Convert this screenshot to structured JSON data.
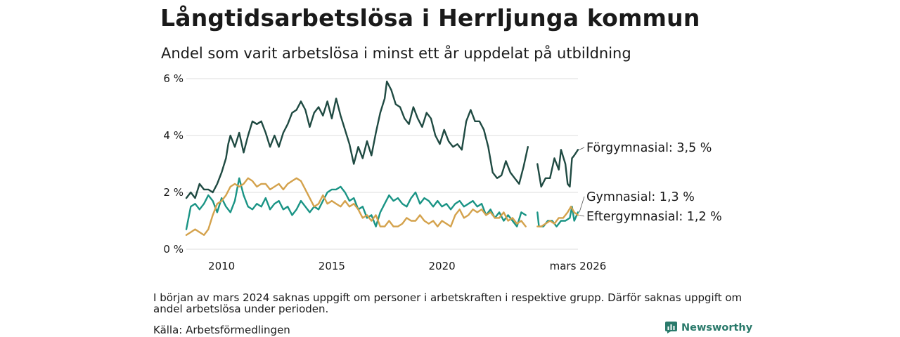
{
  "title": "Långtidsarbetslösa i Herrljunga kommun",
  "subtitle": "Andel som varit arbetslösa i minst ett år uppdelat på utbildning",
  "note": "I början av mars 2024 saknas uppgift om personer i arbetskraften i respektive grupp. Därför saknas uppgift om andel arbetslösa under perioden.",
  "source": "Källa: Arbetsförmedlingen",
  "brand": "Newsworthy",
  "colors": {
    "forgymnasial": "#1f4a42",
    "gymnasial": "#1a9485",
    "eftergymnasial": "#d4a24c",
    "grid": "#dcdcdc",
    "brand": "#2a7a6b"
  },
  "chart_data": {
    "type": "line",
    "title": "Långtidsarbetslösa i Herrljunga kommun",
    "xlabel": "",
    "ylabel": "",
    "xlim": [
      2008.4,
      2026.17
    ],
    "ylim": [
      0,
      6
    ],
    "grid": true,
    "y_ticks": [
      {
        "value": 0,
        "label": "0 %"
      },
      {
        "value": 2,
        "label": "2 %"
      },
      {
        "value": 4,
        "label": "4 %"
      },
      {
        "value": 6,
        "label": "6 %"
      }
    ],
    "x_ticks": [
      {
        "value": 2010,
        "label": "2010"
      },
      {
        "value": 2015,
        "label": "2015"
      },
      {
        "value": 2020,
        "label": "2020"
      },
      {
        "value": 2026.17,
        "label": "mars 2026"
      }
    ],
    "gap": [
      2024.17,
      2024.33
    ],
    "series": [
      {
        "name": "Förgymnasial",
        "end_label": "Förgymnasial: 3,5 %",
        "color_key": "forgymnasial",
        "points": [
          [
            2008.4,
            1.8
          ],
          [
            2008.6,
            2.0
          ],
          [
            2008.8,
            1.8
          ],
          [
            2009.0,
            2.3
          ],
          [
            2009.2,
            2.1
          ],
          [
            2009.4,
            2.1
          ],
          [
            2009.6,
            2.0
          ],
          [
            2009.8,
            2.3
          ],
          [
            2010.0,
            2.7
          ],
          [
            2010.2,
            3.2
          ],
          [
            2010.3,
            3.7
          ],
          [
            2010.4,
            4.0
          ],
          [
            2010.6,
            3.6
          ],
          [
            2010.8,
            4.1
          ],
          [
            2011.0,
            3.4
          ],
          [
            2011.2,
            4.0
          ],
          [
            2011.4,
            4.5
          ],
          [
            2011.6,
            4.4
          ],
          [
            2011.8,
            4.5
          ],
          [
            2012.0,
            4.1
          ],
          [
            2012.2,
            3.6
          ],
          [
            2012.4,
            4.0
          ],
          [
            2012.6,
            3.6
          ],
          [
            2012.8,
            4.1
          ],
          [
            2013.0,
            4.4
          ],
          [
            2013.2,
            4.8
          ],
          [
            2013.4,
            4.9
          ],
          [
            2013.6,
            5.2
          ],
          [
            2013.8,
            4.9
          ],
          [
            2014.0,
            4.3
          ],
          [
            2014.2,
            4.8
          ],
          [
            2014.4,
            5.0
          ],
          [
            2014.6,
            4.7
          ],
          [
            2014.8,
            5.2
          ],
          [
            2015.0,
            4.6
          ],
          [
            2015.2,
            5.3
          ],
          [
            2015.4,
            4.7
          ],
          [
            2015.6,
            4.2
          ],
          [
            2015.8,
            3.7
          ],
          [
            2016.0,
            3.0
          ],
          [
            2016.2,
            3.6
          ],
          [
            2016.4,
            3.2
          ],
          [
            2016.6,
            3.8
          ],
          [
            2016.8,
            3.3
          ],
          [
            2017.0,
            4.1
          ],
          [
            2017.2,
            4.8
          ],
          [
            2017.4,
            5.3
          ],
          [
            2017.5,
            5.9
          ],
          [
            2017.7,
            5.6
          ],
          [
            2017.9,
            5.1
          ],
          [
            2018.1,
            5.0
          ],
          [
            2018.3,
            4.6
          ],
          [
            2018.5,
            4.4
          ],
          [
            2018.7,
            5.0
          ],
          [
            2018.9,
            4.6
          ],
          [
            2019.1,
            4.3
          ],
          [
            2019.3,
            4.8
          ],
          [
            2019.5,
            4.6
          ],
          [
            2019.7,
            4.0
          ],
          [
            2019.9,
            3.7
          ],
          [
            2020.1,
            4.2
          ],
          [
            2020.3,
            3.8
          ],
          [
            2020.5,
            3.6
          ],
          [
            2020.7,
            3.7
          ],
          [
            2020.9,
            3.5
          ],
          [
            2021.1,
            4.5
          ],
          [
            2021.3,
            4.9
          ],
          [
            2021.5,
            4.5
          ],
          [
            2021.7,
            4.5
          ],
          [
            2021.9,
            4.2
          ],
          [
            2022.1,
            3.6
          ],
          [
            2022.3,
            2.7
          ],
          [
            2022.5,
            2.5
          ],
          [
            2022.7,
            2.6
          ],
          [
            2022.9,
            3.1
          ],
          [
            2023.1,
            2.7
          ],
          [
            2023.3,
            2.5
          ],
          [
            2023.5,
            2.3
          ],
          [
            2023.7,
            2.9
          ],
          [
            2023.9,
            3.6
          ],
          null,
          [
            2024.33,
            3.0
          ],
          [
            2024.5,
            2.2
          ],
          [
            2024.7,
            2.5
          ],
          [
            2024.9,
            2.5
          ],
          [
            2025.1,
            3.2
          ],
          [
            2025.3,
            2.8
          ],
          [
            2025.4,
            3.5
          ],
          [
            2025.6,
            3.0
          ],
          [
            2025.7,
            2.3
          ],
          [
            2025.8,
            2.2
          ],
          [
            2025.9,
            3.2
          ],
          [
            2026.0,
            3.3
          ],
          [
            2026.17,
            3.5
          ]
        ]
      },
      {
        "name": "Gymnasial",
        "end_label": "Gymnasial: 1,3 %",
        "color_key": "gymnasial",
        "points": [
          [
            2008.4,
            0.7
          ],
          [
            2008.6,
            1.5
          ],
          [
            2008.8,
            1.6
          ],
          [
            2009.0,
            1.4
          ],
          [
            2009.2,
            1.6
          ],
          [
            2009.4,
            1.9
          ],
          [
            2009.6,
            1.7
          ],
          [
            2009.8,
            1.3
          ],
          [
            2010.0,
            1.8
          ],
          [
            2010.2,
            1.5
          ],
          [
            2010.4,
            1.3
          ],
          [
            2010.6,
            1.7
          ],
          [
            2010.8,
            2.5
          ],
          [
            2011.0,
            1.9
          ],
          [
            2011.2,
            1.5
          ],
          [
            2011.4,
            1.4
          ],
          [
            2011.6,
            1.6
          ],
          [
            2011.8,
            1.5
          ],
          [
            2012.0,
            1.8
          ],
          [
            2012.2,
            1.4
          ],
          [
            2012.4,
            1.6
          ],
          [
            2012.6,
            1.7
          ],
          [
            2012.8,
            1.4
          ],
          [
            2013.0,
            1.5
          ],
          [
            2013.2,
            1.2
          ],
          [
            2013.4,
            1.4
          ],
          [
            2013.6,
            1.7
          ],
          [
            2013.8,
            1.5
          ],
          [
            2014.0,
            1.3
          ],
          [
            2014.2,
            1.5
          ],
          [
            2014.4,
            1.4
          ],
          [
            2014.6,
            1.7
          ],
          [
            2014.8,
            2.0
          ],
          [
            2015.0,
            2.1
          ],
          [
            2015.2,
            2.1
          ],
          [
            2015.4,
            2.2
          ],
          [
            2015.6,
            2.0
          ],
          [
            2015.8,
            1.7
          ],
          [
            2016.0,
            1.8
          ],
          [
            2016.2,
            1.4
          ],
          [
            2016.4,
            1.5
          ],
          [
            2016.6,
            1.1
          ],
          [
            2016.8,
            1.2
          ],
          [
            2017.0,
            0.8
          ],
          [
            2017.2,
            1.3
          ],
          [
            2017.4,
            1.6
          ],
          [
            2017.6,
            1.9
          ],
          [
            2017.8,
            1.7
          ],
          [
            2018.0,
            1.8
          ],
          [
            2018.2,
            1.6
          ],
          [
            2018.4,
            1.5
          ],
          [
            2018.6,
            1.8
          ],
          [
            2018.8,
            2.0
          ],
          [
            2019.0,
            1.6
          ],
          [
            2019.2,
            1.8
          ],
          [
            2019.4,
            1.7
          ],
          [
            2019.6,
            1.5
          ],
          [
            2019.8,
            1.7
          ],
          [
            2020.0,
            1.5
          ],
          [
            2020.2,
            1.6
          ],
          [
            2020.4,
            1.4
          ],
          [
            2020.6,
            1.6
          ],
          [
            2020.8,
            1.7
          ],
          [
            2021.0,
            1.5
          ],
          [
            2021.2,
            1.6
          ],
          [
            2021.4,
            1.7
          ],
          [
            2021.6,
            1.5
          ],
          [
            2021.8,
            1.6
          ],
          [
            2022.0,
            1.2
          ],
          [
            2022.2,
            1.4
          ],
          [
            2022.4,
            1.1
          ],
          [
            2022.6,
            1.3
          ],
          [
            2022.8,
            1.0
          ],
          [
            2023.0,
            1.2
          ],
          [
            2023.2,
            1.0
          ],
          [
            2023.4,
            0.8
          ],
          [
            2023.6,
            1.3
          ],
          [
            2023.8,
            1.2
          ],
          null,
          [
            2024.33,
            1.3
          ],
          [
            2024.4,
            0.8
          ],
          [
            2024.6,
            0.8
          ],
          [
            2024.8,
            1.0
          ],
          [
            2025.0,
            1.0
          ],
          [
            2025.2,
            0.8
          ],
          [
            2025.4,
            1.0
          ],
          [
            2025.6,
            1.0
          ],
          [
            2025.8,
            1.1
          ],
          [
            2025.9,
            1.5
          ],
          [
            2026.0,
            1.0
          ],
          [
            2026.17,
            1.3
          ]
        ]
      },
      {
        "name": "Eftergymnasial",
        "end_label": "Eftergymnasial: 1,2 %",
        "color_key": "eftergymnasial",
        "points": [
          [
            2008.4,
            0.5
          ],
          [
            2008.6,
            0.6
          ],
          [
            2008.8,
            0.7
          ],
          [
            2009.0,
            0.6
          ],
          [
            2009.2,
            0.5
          ],
          [
            2009.4,
            0.7
          ],
          [
            2009.6,
            1.2
          ],
          [
            2009.8,
            1.6
          ],
          [
            2010.0,
            1.7
          ],
          [
            2010.2,
            1.9
          ],
          [
            2010.4,
            2.2
          ],
          [
            2010.6,
            2.3
          ],
          [
            2010.8,
            2.2
          ],
          [
            2011.0,
            2.3
          ],
          [
            2011.2,
            2.5
          ],
          [
            2011.4,
            2.4
          ],
          [
            2011.6,
            2.2
          ],
          [
            2011.8,
            2.3
          ],
          [
            2012.0,
            2.3
          ],
          [
            2012.2,
            2.1
          ],
          [
            2012.4,
            2.2
          ],
          [
            2012.6,
            2.3
          ],
          [
            2012.8,
            2.1
          ],
          [
            2013.0,
            2.3
          ],
          [
            2013.2,
            2.4
          ],
          [
            2013.4,
            2.5
          ],
          [
            2013.6,
            2.4
          ],
          [
            2013.8,
            2.1
          ],
          [
            2014.0,
            1.8
          ],
          [
            2014.2,
            1.5
          ],
          [
            2014.4,
            1.6
          ],
          [
            2014.6,
            1.9
          ],
          [
            2014.8,
            1.6
          ],
          [
            2015.0,
            1.7
          ],
          [
            2015.2,
            1.6
          ],
          [
            2015.4,
            1.5
          ],
          [
            2015.6,
            1.7
          ],
          [
            2015.8,
            1.5
          ],
          [
            2016.0,
            1.6
          ],
          [
            2016.2,
            1.4
          ],
          [
            2016.4,
            1.1
          ],
          [
            2016.6,
            1.2
          ],
          [
            2016.8,
            1.0
          ],
          [
            2017.0,
            1.2
          ],
          [
            2017.2,
            0.8
          ],
          [
            2017.4,
            0.8
          ],
          [
            2017.6,
            1.0
          ],
          [
            2017.8,
            0.8
          ],
          [
            2018.0,
            0.8
          ],
          [
            2018.2,
            0.9
          ],
          [
            2018.4,
            1.1
          ],
          [
            2018.6,
            1.0
          ],
          [
            2018.8,
            1.0
          ],
          [
            2019.0,
            1.2
          ],
          [
            2019.2,
            1.0
          ],
          [
            2019.4,
            0.9
          ],
          [
            2019.6,
            1.0
          ],
          [
            2019.8,
            0.8
          ],
          [
            2020.0,
            1.0
          ],
          [
            2020.2,
            0.9
          ],
          [
            2020.4,
            0.8
          ],
          [
            2020.6,
            1.2
          ],
          [
            2020.8,
            1.4
          ],
          [
            2021.0,
            1.1
          ],
          [
            2021.2,
            1.2
          ],
          [
            2021.4,
            1.4
          ],
          [
            2021.6,
            1.3
          ],
          [
            2021.8,
            1.4
          ],
          [
            2022.0,
            1.2
          ],
          [
            2022.2,
            1.3
          ],
          [
            2022.4,
            1.1
          ],
          [
            2022.6,
            1.1
          ],
          [
            2022.8,
            1.3
          ],
          [
            2023.0,
            1.0
          ],
          [
            2023.2,
            1.1
          ],
          [
            2023.4,
            0.9
          ],
          [
            2023.6,
            1.0
          ],
          [
            2023.8,
            0.8
          ],
          null,
          [
            2024.33,
            0.8
          ],
          [
            2024.5,
            0.8
          ],
          [
            2024.7,
            0.9
          ],
          [
            2024.9,
            1.0
          ],
          [
            2025.1,
            0.9
          ],
          [
            2025.3,
            1.1
          ],
          [
            2025.5,
            1.1
          ],
          [
            2025.7,
            1.3
          ],
          [
            2025.85,
            1.5
          ],
          [
            2026.0,
            1.3
          ],
          [
            2026.17,
            1.2
          ]
        ]
      }
    ]
  }
}
